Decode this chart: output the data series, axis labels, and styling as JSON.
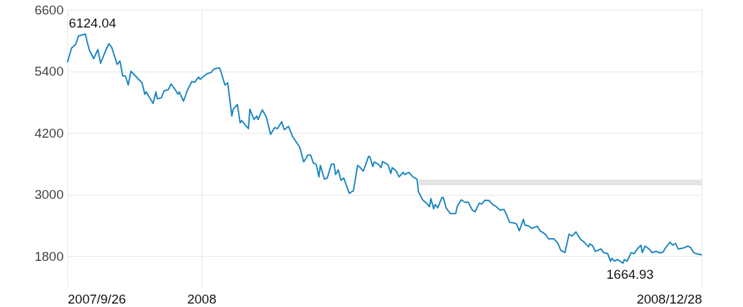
{
  "chart_data": {
    "type": "line",
    "xlim": [
      "2007-09-26",
      "2008-12-28"
    ],
    "xticks": [
      {
        "value": "2007-09-26",
        "label": "2007/9/26"
      },
      {
        "value": "2008-01-01",
        "label": "2008"
      },
      {
        "value": "2008-12-28",
        "label": "2008/12/28"
      }
    ],
    "ylim": [
      1200,
      6600
    ],
    "yticks": [
      1800,
      3000,
      4200,
      5400,
      6600
    ],
    "grid": true,
    "annotations": [
      {
        "text": "6124.04",
        "x": "2007-10-09",
        "y": 6124.04
      },
      {
        "text": "1664.93",
        "x": "2008-11-01",
        "y": 1664.93
      }
    ],
    "series": [
      {
        "color": "#1a85c0",
        "x": [
          "2007-09-26",
          "2007-09-29",
          "2007-10-02",
          "2007-10-04",
          "2007-10-09",
          "2007-10-10",
          "2007-10-12",
          "2007-10-15",
          "2007-10-18",
          "2007-10-20",
          "2007-10-24",
          "2007-10-26",
          "2007-10-28",
          "2007-11-01",
          "2007-11-03",
          "2007-11-05",
          "2007-11-07",
          "2007-11-09",
          "2007-11-11",
          "2007-11-15",
          "2007-11-19",
          "2007-11-21",
          "2007-11-22",
          "2007-11-27",
          "2007-11-29",
          "2007-11-30",
          "2007-12-03",
          "2007-12-05",
          "2007-12-08",
          "2007-12-10",
          "2007-12-13",
          "2007-12-15",
          "2007-12-16",
          "2007-12-19",
          "2007-12-22",
          "2007-12-25",
          "2007-12-27",
          "2007-12-30",
          "2007-12-31",
          "2008-01-05",
          "2008-01-08",
          "2008-01-10",
          "2008-01-14",
          "2008-01-15",
          "2008-01-18",
          "2008-01-20",
          "2008-01-23",
          "2008-01-24",
          "2008-01-27",
          "2008-01-29",
          "2008-01-30",
          "2008-02-04",
          "2008-02-05",
          "2008-02-08",
          "2008-02-10",
          "2008-02-11",
          "2008-02-14",
          "2008-02-17",
          "2008-02-20",
          "2008-02-23",
          "2008-02-25",
          "2008-02-28",
          "2008-03-01",
          "2008-03-04",
          "2008-03-07",
          "2008-03-12",
          "2008-03-15",
          "2008-03-18",
          "2008-03-20",
          "2008-03-22",
          "2008-03-24",
          "2008-03-26",
          "2008-03-27",
          "2008-03-30",
          "2008-04-01",
          "2008-04-04",
          "2008-04-06",
          "2008-04-07",
          "2008-04-09",
          "2008-04-11",
          "2008-04-13",
          "2008-04-15",
          "2008-04-17",
          "2008-04-20",
          "2008-04-23",
          "2008-04-25",
          "2008-04-27",
          "2008-04-28",
          "2008-05-01",
          "2008-05-02",
          "2008-05-04",
          "2008-05-05",
          "2008-05-08",
          "2008-05-10",
          "2008-05-11",
          "2008-05-15",
          "2008-05-17",
          "2008-05-18",
          "2008-05-21",
          "2008-05-23",
          "2008-05-26",
          "2008-05-27",
          "2008-05-30",
          "2008-06-02",
          "2008-06-05",
          "2008-06-06",
          "2008-06-09",
          "2008-06-12",
          "2008-06-14",
          "2008-06-15",
          "2008-06-17",
          "2008-06-18",
          "2008-06-20",
          "2008-06-23",
          "2008-06-24",
          "2008-06-26",
          "2008-06-29",
          "2008-07-03",
          "2008-07-04",
          "2008-07-07",
          "2008-07-10",
          "2008-07-12",
          "2008-07-15",
          "2008-07-17",
          "2008-07-20",
          "2008-07-22",
          "2008-07-24",
          "2008-07-27",
          "2008-07-30",
          "2008-08-01",
          "2008-08-04",
          "2008-08-07",
          "2008-08-08",
          "2008-08-11",
          "2008-08-15",
          "2008-08-16",
          "2008-08-18",
          "2008-08-21",
          "2008-08-22",
          "2008-08-25",
          "2008-08-27",
          "2008-08-31",
          "2008-09-02",
          "2008-09-06",
          "2008-09-08",
          "2008-09-12",
          "2008-09-15",
          "2008-09-17",
          "2008-09-20",
          "2008-09-23",
          "2008-09-25",
          "2008-09-28",
          "2008-09-29",
          "2008-10-01",
          "2008-10-04",
          "2008-10-07",
          "2008-10-08",
          "2008-10-10",
          "2008-10-12",
          "2008-10-14",
          "2008-10-16",
          "2008-10-18",
          "2008-10-21",
          "2008-10-23",
          "2008-10-24",
          "2008-10-26",
          "2008-10-28",
          "2008-10-30",
          "2008-11-01",
          "2008-11-02",
          "2008-11-04",
          "2008-11-05",
          "2008-11-07",
          "2008-11-09",
          "2008-11-12",
          "2008-11-14",
          "2008-11-15",
          "2008-11-17",
          "2008-11-20",
          "2008-11-22",
          "2008-11-25",
          "2008-11-28",
          "2008-11-30",
          "2008-12-02",
          "2008-12-05",
          "2008-12-07",
          "2008-12-09",
          "2008-12-11",
          "2008-12-15",
          "2008-12-18",
          "2008-12-20",
          "2008-12-22",
          "2008-12-24",
          "2008-12-28"
        ],
        "values": [
          5574,
          5854,
          5924,
          6087,
          6124.04,
          6003,
          5802,
          5645,
          5823,
          5555,
          5823,
          5936,
          5869,
          5534,
          5601,
          5310,
          5310,
          5132,
          5400,
          5287,
          5176,
          4952,
          4998,
          4774,
          4998,
          4864,
          4886,
          5019,
          5042,
          5153,
          5042,
          4952,
          4998,
          4818,
          5042,
          5199,
          5186,
          5287,
          5243,
          5354,
          5376,
          5444,
          5467,
          5400,
          5132,
          5176,
          4529,
          4663,
          4752,
          4395,
          4440,
          4283,
          4663,
          4462,
          4529,
          4462,
          4650,
          4506,
          4171,
          4305,
          4283,
          4417,
          4261,
          4328,
          4127,
          3926,
          3635,
          3769,
          3769,
          3613,
          3590,
          3345,
          3568,
          3300,
          3322,
          3591,
          3591,
          3390,
          3479,
          3278,
          3322,
          3166,
          3024,
          3078,
          3568,
          3524,
          3457,
          3524,
          3747,
          3725,
          3546,
          3635,
          3591,
          3524,
          3645,
          3580,
          3411,
          3524,
          3457,
          3345,
          3434,
          3390,
          3434,
          3345,
          3300,
          3055,
          2898,
          2831,
          2764,
          2921,
          2720,
          2809,
          2742,
          2943,
          2943,
          2742,
          2630,
          2630,
          2764,
          2898,
          2845,
          2854,
          2697,
          2666,
          2831,
          2818,
          2889,
          2885,
          2800,
          2773,
          2697,
          2710,
          2653,
          2460,
          2442,
          2428,
          2295,
          2519,
          2407,
          2385,
          2340,
          2385,
          2295,
          2228,
          2139,
          2139,
          2050,
          1916,
          1871,
          2228,
          2192,
          2273,
          2228,
          2139,
          2072,
          1983,
          2041,
          2005,
          1894,
          1916,
          1943,
          1871,
          1849,
          1702,
          1760,
          1702,
          1737,
          1702,
          1664.93,
          1737,
          1702,
          1760,
          1871,
          1849,
          1961,
          2014,
          1871,
          1997,
          1939,
          1871,
          1894,
          1863,
          1880,
          1970,
          2072,
          2014,
          2050,
          1939,
          1961,
          1997,
          1970,
          1876,
          1849,
          1827
        ]
      }
    ]
  }
}
